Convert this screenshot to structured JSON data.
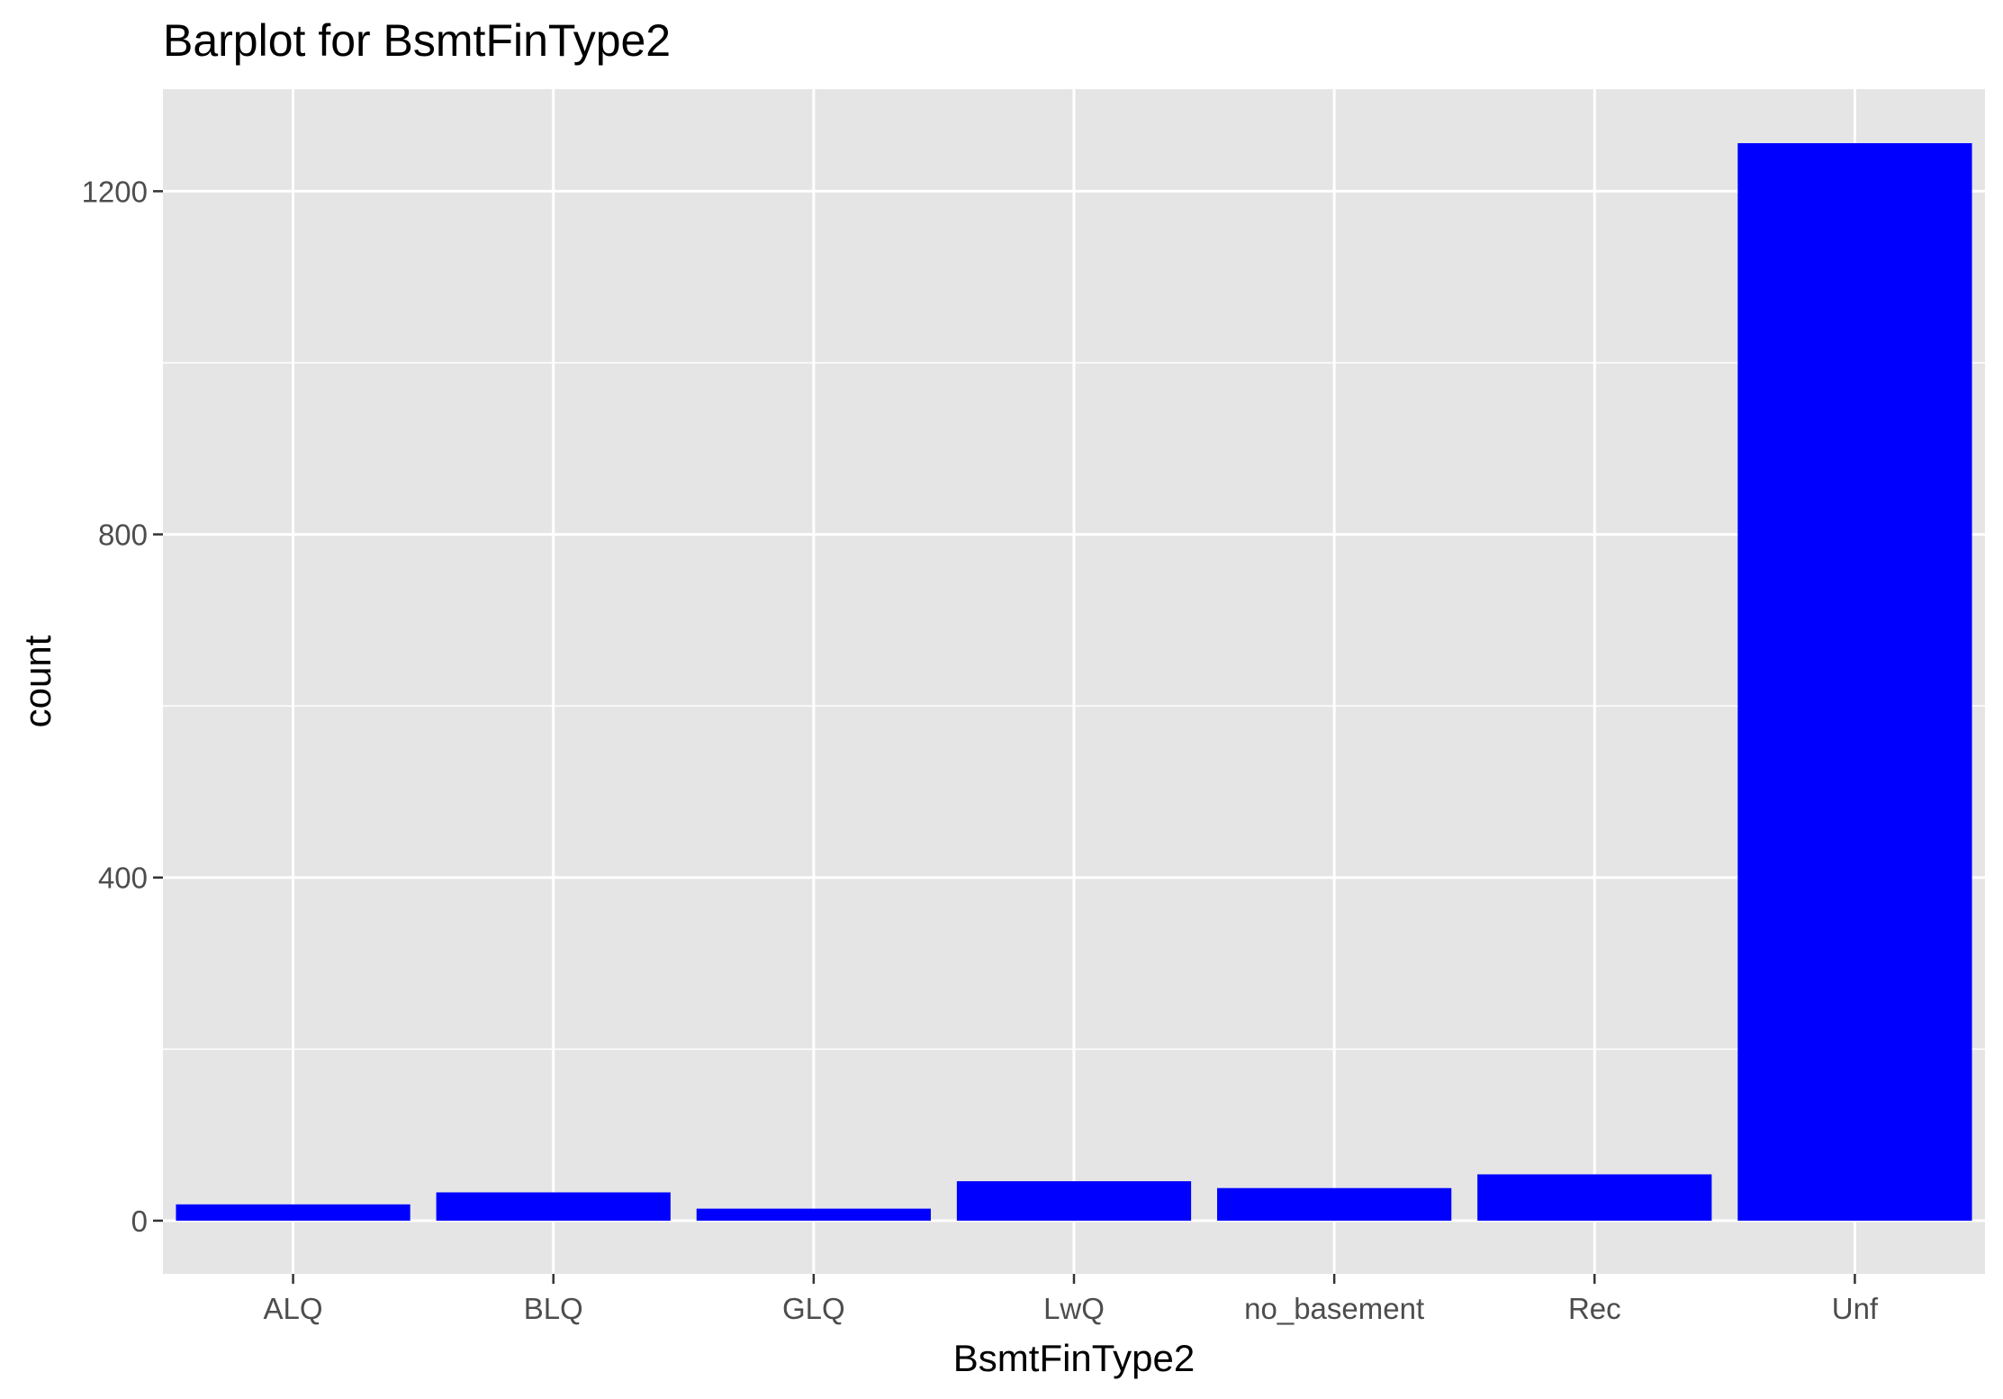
{
  "chart_data": {
    "type": "bar",
    "title": "Barplot for BsmtFinType2",
    "xlabel": "BsmtFinType2",
    "ylabel": "count",
    "categories": [
      "ALQ",
      "BLQ",
      "GLQ",
      "LwQ",
      "no_basement",
      "Rec",
      "Unf"
    ],
    "values": [
      19,
      33,
      14,
      46,
      38,
      54,
      1256
    ],
    "ylim": [
      -62,
      1319
    ],
    "yticks": [
      0,
      400,
      800,
      1200
    ],
    "yticklabels": [
      "0",
      "400",
      "800",
      "1200"
    ],
    "grid": true,
    "legend": "none",
    "colors": {
      "bar": "#0000ff",
      "panel": "#e5e5e5",
      "grid": "#ffffff",
      "tick_text": "#4d4d4d",
      "tick_mark": "#333333"
    }
  }
}
